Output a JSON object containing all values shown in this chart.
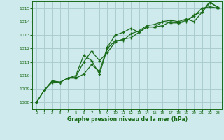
{
  "title": "Graphe pression niveau de la mer (hPa)",
  "bg_color": "#ceeaec",
  "grid_color": "#aacdd0",
  "line_color": "#1a6b1a",
  "xlim": [
    -0.5,
    23.5
  ],
  "ylim": [
    1007.5,
    1015.5
  ],
  "yticks": [
    1008,
    1009,
    1010,
    1011,
    1012,
    1013,
    1014,
    1015
  ],
  "xticks": [
    0,
    1,
    2,
    3,
    4,
    5,
    6,
    7,
    8,
    9,
    10,
    11,
    12,
    13,
    14,
    15,
    16,
    17,
    18,
    19,
    20,
    21,
    22,
    23
  ],
  "series1_x": [
    0,
    1,
    2,
    3,
    4,
    5,
    6,
    7,
    8,
    9,
    10,
    11,
    12,
    13,
    14,
    15,
    16,
    17,
    18,
    19,
    20,
    21,
    22,
    23
  ],
  "series1_y": [
    1008.0,
    1008.9,
    1009.6,
    1009.5,
    1009.8,
    1009.8,
    1010.1,
    1010.8,
    1010.3,
    1012.1,
    1013.0,
    1013.2,
    1013.5,
    1013.2,
    1013.6,
    1013.6,
    1014.0,
    1013.9,
    1013.9,
    1014.1,
    1014.4,
    1015.0,
    1015.1,
    1015.0
  ],
  "series2_x": [
    0,
    1,
    2,
    3,
    4,
    5,
    6,
    7,
    8,
    9,
    10,
    11,
    12,
    13,
    14,
    15,
    16,
    17,
    18,
    19,
    20,
    21,
    22,
    23
  ],
  "series2_y": [
    1008.0,
    1008.9,
    1009.5,
    1009.5,
    1009.8,
    1009.9,
    1011.0,
    1011.8,
    1011.1,
    1011.7,
    1012.5,
    1012.7,
    1012.8,
    1013.2,
    1013.6,
    1013.6,
    1013.7,
    1014.0,
    1013.9,
    1014.0,
    1014.5,
    1014.7,
    1015.4,
    1015.1
  ],
  "series3_x": [
    0,
    1,
    2,
    3,
    4,
    5,
    6,
    7,
    8,
    9,
    10,
    11,
    12,
    13,
    14,
    15,
    16,
    17,
    18,
    19,
    20,
    21,
    22,
    23
  ],
  "series3_y": [
    1008.0,
    1008.9,
    1009.6,
    1009.5,
    1009.8,
    1010.0,
    1011.5,
    1011.1,
    1010.1,
    1012.0,
    1012.6,
    1012.6,
    1013.1,
    1013.3,
    1013.7,
    1013.8,
    1014.0,
    1014.1,
    1014.0,
    1014.2,
    1014.0,
    1014.7,
    1015.5,
    1015.0
  ]
}
